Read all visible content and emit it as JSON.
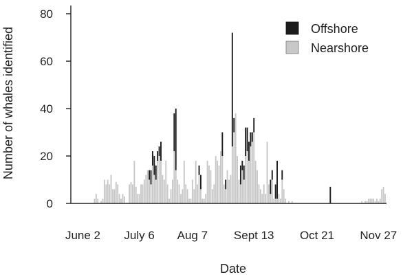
{
  "chart_data": {
    "type": "bar",
    "stacked": true,
    "title": "",
    "xlabel": "Date",
    "ylabel": "Number of whales identified",
    "ylim": [
      0,
      86
    ],
    "yticks": [
      0,
      20,
      40,
      60,
      80
    ],
    "grid": false,
    "legend": {
      "placement": "top-right"
    },
    "xticks": [
      {
        "label": "June 2",
        "day": 7
      },
      {
        "label": "July 6",
        "day": 41
      },
      {
        "label": "Aug 7",
        "day": 73
      },
      {
        "label": "Sept 13",
        "day": 110
      },
      {
        "label": "Oct 21",
        "day": 148
      },
      {
        "label": "Nov 27",
        "day": 185
      }
    ],
    "xlim": [
      1,
      189
    ],
    "series": [
      {
        "name": "Nearshore",
        "color": "#c8c8c8",
        "points": [
          [
            14,
            2
          ],
          [
            15,
            4
          ],
          [
            16,
            2
          ],
          [
            18,
            1
          ],
          [
            19,
            2
          ],
          [
            20,
            10
          ],
          [
            21,
            8
          ],
          [
            22,
            10
          ],
          [
            23,
            8
          ],
          [
            24,
            12
          ],
          [
            25,
            6
          ],
          [
            26,
            6
          ],
          [
            27,
            9
          ],
          [
            28,
            8
          ],
          [
            29,
            4
          ],
          [
            30,
            2
          ],
          [
            31,
            4
          ],
          [
            32,
            3
          ],
          [
            35,
            8
          ],
          [
            36,
            9
          ],
          [
            37,
            8
          ],
          [
            38,
            18
          ],
          [
            39,
            7
          ],
          [
            40,
            4
          ],
          [
            41,
            4
          ],
          [
            42,
            8
          ],
          [
            43,
            8
          ],
          [
            44,
            10
          ],
          [
            45,
            12
          ],
          [
            46,
            14
          ],
          [
            47,
            10
          ],
          [
            48,
            8
          ],
          [
            49,
            16
          ],
          [
            50,
            12
          ],
          [
            51,
            10
          ],
          [
            52,
            18
          ],
          [
            53,
            20
          ],
          [
            54,
            18
          ],
          [
            55,
            12
          ],
          [
            56,
            10
          ],
          [
            57,
            18
          ],
          [
            58,
            8
          ],
          [
            59,
            2
          ],
          [
            60,
            6
          ],
          [
            61,
            10
          ],
          [
            62,
            22
          ],
          [
            63,
            14
          ],
          [
            64,
            10
          ],
          [
            65,
            8
          ],
          [
            66,
            4
          ],
          [
            67,
            6
          ],
          [
            68,
            18
          ],
          [
            69,
            8
          ],
          [
            70,
            6
          ],
          [
            71,
            2
          ],
          [
            72,
            2
          ],
          [
            73,
            10
          ],
          [
            74,
            6
          ],
          [
            75,
            18
          ],
          [
            76,
            8
          ],
          [
            77,
            12
          ],
          [
            78,
            6
          ],
          [
            79,
            2
          ],
          [
            80,
            2
          ],
          [
            81,
            4
          ],
          [
            82,
            18
          ],
          [
            83,
            16
          ],
          [
            84,
            14
          ],
          [
            85,
            6
          ],
          [
            86,
            8
          ],
          [
            87,
            20
          ],
          [
            88,
            18
          ],
          [
            89,
            16
          ],
          [
            90,
            22
          ],
          [
            91,
            20
          ],
          [
            92,
            8
          ],
          [
            93,
            6
          ],
          [
            94,
            14
          ],
          [
            95,
            10
          ],
          [
            96,
            12
          ],
          [
            97,
            24
          ],
          [
            98,
            30
          ],
          [
            99,
            38
          ],
          [
            100,
            20
          ],
          [
            101,
            10
          ],
          [
            102,
            8
          ],
          [
            103,
            14
          ],
          [
            104,
            10
          ],
          [
            105,
            20
          ],
          [
            106,
            22
          ],
          [
            107,
            18
          ],
          [
            108,
            24
          ],
          [
            109,
            26
          ],
          [
            110,
            30
          ],
          [
            111,
            18
          ],
          [
            112,
            14
          ],
          [
            113,
            8
          ],
          [
            114,
            6
          ],
          [
            115,
            4
          ],
          [
            116,
            8
          ],
          [
            117,
            4
          ],
          [
            118,
            26
          ],
          [
            119,
            8
          ],
          [
            120,
            4
          ],
          [
            121,
            10
          ],
          [
            122,
            2
          ],
          [
            123,
            2
          ],
          [
            124,
            2
          ],
          [
            125,
            4
          ],
          [
            126,
            2
          ],
          [
            127,
            10
          ],
          [
            128,
            6
          ],
          [
            129,
            2
          ],
          [
            131,
            1
          ],
          [
            133,
            1
          ],
          [
            175,
            1
          ],
          [
            177,
            1
          ],
          [
            178,
            1
          ],
          [
            179,
            2
          ],
          [
            180,
            2
          ],
          [
            181,
            2
          ],
          [
            182,
            2
          ],
          [
            183,
            1
          ],
          [
            184,
            2
          ],
          [
            185,
            1
          ],
          [
            186,
            2
          ],
          [
            187,
            6
          ],
          [
            188,
            7
          ],
          [
            189,
            4
          ]
        ]
      },
      {
        "name": "Offshore",
        "color": "#1c1c1c",
        "points": [
          [
            47,
            4
          ],
          [
            48,
            6
          ],
          [
            49,
            6
          ],
          [
            50,
            8
          ],
          [
            51,
            6
          ],
          [
            52,
            4
          ],
          [
            53,
            4
          ],
          [
            54,
            8
          ],
          [
            62,
            16
          ],
          [
            63,
            26
          ],
          [
            77,
            4
          ],
          [
            78,
            6
          ],
          [
            91,
            10
          ],
          [
            93,
            4
          ],
          [
            97,
            48
          ],
          [
            98,
            6
          ],
          [
            102,
            8
          ],
          [
            103,
            4
          ],
          [
            104,
            6
          ],
          [
            105,
            12
          ],
          [
            106,
            10
          ],
          [
            107,
            8
          ],
          [
            108,
            6
          ],
          [
            109,
            4
          ],
          [
            110,
            6
          ],
          [
            120,
            6
          ],
          [
            121,
            4
          ],
          [
            123,
            6
          ],
          [
            124,
            16
          ],
          [
            127,
            4
          ],
          [
            156,
            7
          ]
        ]
      }
    ]
  }
}
